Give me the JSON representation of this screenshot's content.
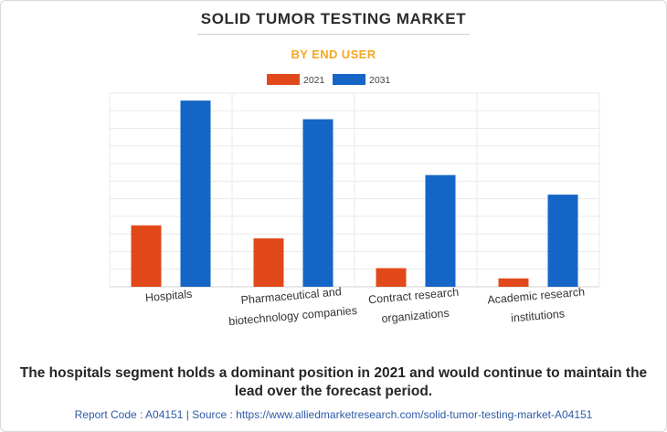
{
  "header": {
    "title": "SOLID TUMOR TESTING MARKET",
    "subtitle": "BY END USER"
  },
  "colors": {
    "series_2021": "#e2491a",
    "series_2031": "#1565c7",
    "title_accent": "#f6a623",
    "link": "#2e5aa7"
  },
  "chart_data": {
    "type": "bar",
    "categories": [
      [
        "Hospitals"
      ],
      [
        "Pharmaceutical and",
        "biotechnology companies"
      ],
      [
        "Contract research",
        "organizations"
      ],
      [
        "Academic research",
        "institutions"
      ]
    ],
    "series": [
      {
        "name": "2021",
        "values": [
          3.3,
          2.6,
          1.0,
          0.45
        ]
      },
      {
        "name": "2031",
        "values": [
          10.0,
          9.0,
          6.0,
          4.95
        ]
      }
    ],
    "ylim": [
      0,
      10.4
    ],
    "grid": true,
    "legend_position": "top-center",
    "y_tick_labels_shown": false
  },
  "footer": {
    "summary": "The hospitals segment holds a dominant position in 2021 and would continue to maintain the lead over the forecast period.",
    "report": "Report Code : A04151  |  Source : https://www.alliedmarketresearch.com/solid-tumor-testing-market-A04151"
  }
}
